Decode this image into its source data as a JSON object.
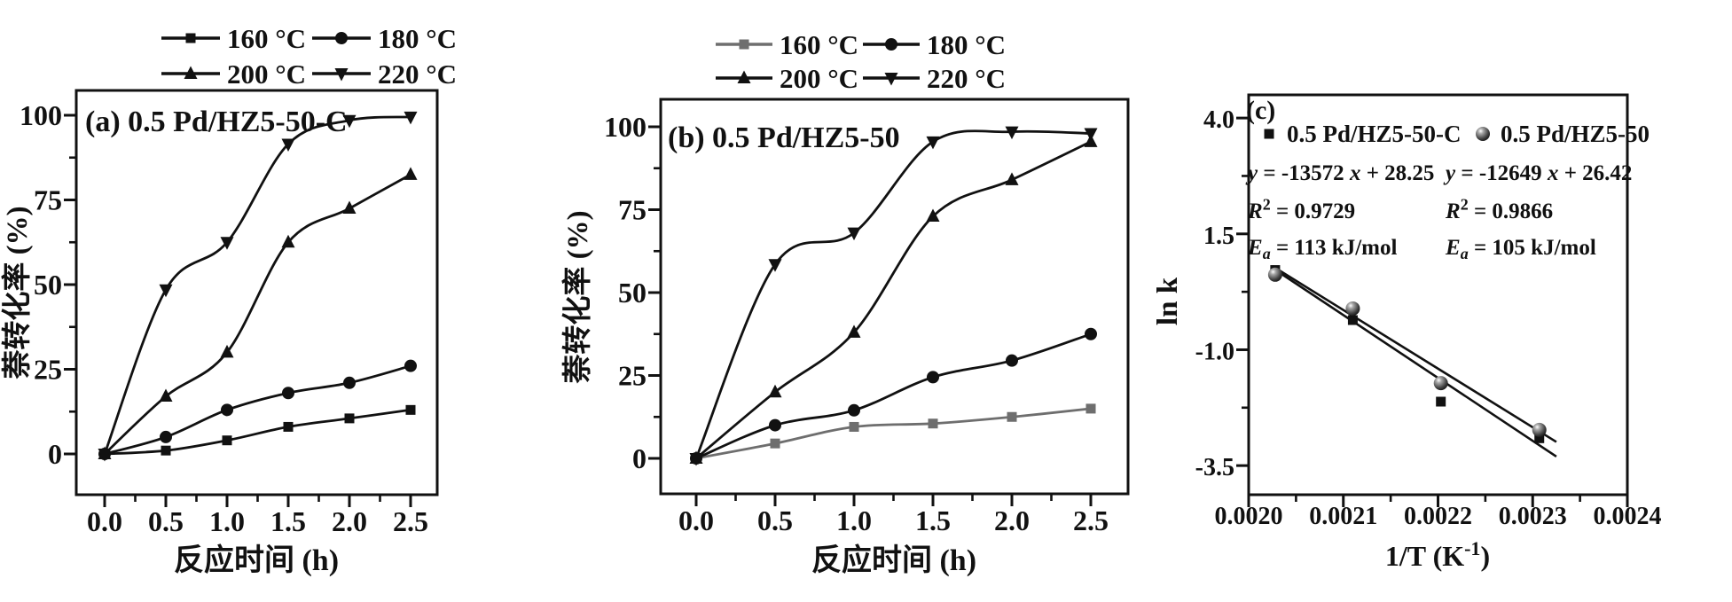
{
  "figure": {
    "background": "#ffffff",
    "ink": "#111111",
    "gray": "#6e6e6e"
  },
  "chart_data": [
    {
      "id": "a",
      "type": "line",
      "title": "(a) 0.5 Pd/HZ5-50-C",
      "xlabel": "反应时间 (h)",
      "ylabel": "萘转化率 (%)",
      "x": [
        0.0,
        0.5,
        1.0,
        1.5,
        2.0,
        2.5
      ],
      "xticks": {
        "values": [
          0.0,
          0.5,
          1.0,
          1.5,
          2.0,
          2.5
        ],
        "labels": [
          "0.0",
          "0.5",
          "1.0",
          "1.5",
          "2.0",
          "2.5"
        ]
      },
      "yticks": {
        "values": [
          0,
          25,
          50,
          75,
          100
        ],
        "labels": [
          "0",
          "25",
          "50",
          "75",
          "100"
        ]
      },
      "xlim": [
        -0.23,
        2.72
      ],
      "ylim": [
        -12,
        107
      ],
      "grid": false,
      "legend_position": "above",
      "legend_rows": [
        [
          "160 °C",
          "180 °C"
        ],
        [
          "200 °C",
          "220 °C"
        ]
      ],
      "series": [
        {
          "name": "160 °C",
          "marker": "square",
          "color": "#111111",
          "values": [
            0,
            1,
            4,
            8,
            10.5,
            13
          ]
        },
        {
          "name": "180 °C",
          "marker": "circle",
          "color": "#111111",
          "values": [
            0,
            5,
            13,
            18,
            21,
            26
          ]
        },
        {
          "name": "200 °C",
          "marker": "triangle-up",
          "color": "#111111",
          "values": [
            0,
            17,
            30,
            62.5,
            72.5,
            82.5
          ]
        },
        {
          "name": "220 °C",
          "marker": "triangle-down",
          "color": "#111111",
          "values": [
            0,
            48.5,
            62.5,
            91.5,
            98.5,
            99.5
          ]
        }
      ]
    },
    {
      "id": "b",
      "type": "line",
      "title": "(b) 0.5 Pd/HZ5-50",
      "xlabel": "反应时间 (h)",
      "ylabel": "萘转化率 (%)",
      "x": [
        0.0,
        0.5,
        1.0,
        1.5,
        2.0,
        2.5
      ],
      "xticks": {
        "values": [
          0.0,
          0.5,
          1.0,
          1.5,
          2.0,
          2.5
        ],
        "labels": [
          "0.0",
          "0.5",
          "1.0",
          "1.5",
          "2.0",
          "2.5"
        ]
      },
      "yticks": {
        "values": [
          0,
          25,
          50,
          75,
          100
        ],
        "labels": [
          "0",
          "25",
          "50",
          "75",
          "100"
        ]
      },
      "xlim": [
        -0.22,
        2.74
      ],
      "ylim": [
        -10.7,
        108.3
      ],
      "grid": false,
      "legend_position": "above",
      "legend_rows": [
        [
          "160 °C",
          "180 °C"
        ],
        [
          "200 °C",
          "220 °C"
        ]
      ],
      "series": [
        {
          "name": "160 °C",
          "marker": "square",
          "color": "#6e6e6e",
          "values": [
            0,
            4.5,
            9.5,
            10.5,
            12.5,
            15
          ]
        },
        {
          "name": "180 °C",
          "marker": "circle",
          "color": "#111111",
          "values": [
            0,
            10,
            14.5,
            24.5,
            29.5,
            37.5
          ]
        },
        {
          "name": "200 °C",
          "marker": "triangle-up",
          "color": "#111111",
          "values": [
            0,
            20,
            38,
            73,
            84,
            95.5
          ]
        },
        {
          "name": "220 °C",
          "marker": "triangle-down",
          "color": "#111111",
          "values": [
            0,
            58.5,
            68,
            95.5,
            98.5,
            98
          ]
        }
      ]
    },
    {
      "id": "c",
      "type": "scatter",
      "title": "(c)",
      "xlabel_segments": [
        {
          "t": "1/T (K"
        },
        {
          "t": "-1",
          "sup": 1
        },
        {
          "t": ")"
        }
      ],
      "ylabel": "ln k",
      "xticks": {
        "values": [
          0.002,
          0.0021,
          0.0022,
          0.0023,
          0.0024
        ],
        "labels": [
          "0.0020",
          "0.0021",
          "0.0022",
          "0.0023",
          "0.0024"
        ]
      },
      "yticks": {
        "values": [
          4.0,
          1.5,
          -1.0,
          -3.5
        ],
        "labels": [
          "4.0",
          "1.5",
          "-1.0",
          "-3.5"
        ]
      },
      "xlim": [
        0.002,
        0.0024
      ],
      "ylim": [
        -4.13,
        4.5
      ],
      "grid": false,
      "legend_position": "inside-top",
      "series": [
        {
          "name": "0.5 Pd/HZ5-50-C",
          "marker": "square",
          "color": "#111111",
          "points": [
            [
              0.002028,
              0.72
            ],
            [
              0.00211,
              -0.36
            ],
            [
              0.002203,
              -2.12
            ],
            [
              0.002307,
              -2.91
            ]
          ],
          "fit": {
            "slope": -13572,
            "intercept": 28.25,
            "x_start": 0.002025,
            "x_end": 0.002325
          },
          "equation_segments": [
            {
              "t": "y",
              "i": 1
            },
            {
              "t": " = -13572 "
            },
            {
              "t": "x",
              "i": 1
            },
            {
              "t": " + 28.25"
            }
          ],
          "r2_segments": [
            {
              "t": "R",
              "i": 1
            },
            {
              "t": "2",
              "sup": 1
            },
            {
              "t": " = 0.9729"
            }
          ],
          "ea_segments": [
            {
              "t": "E",
              "i": 1
            },
            {
              "t": "a",
              "i": 1,
              "sub": 1
            },
            {
              "t": " = 113 kJ/mol"
            }
          ]
        },
        {
          "name": "0.5 Pd/HZ5-50",
          "marker": "sphere",
          "color": "#111111",
          "points": [
            [
              0.002028,
              0.62
            ],
            [
              0.00211,
              -0.11
            ],
            [
              0.002203,
              -1.72
            ],
            [
              0.002307,
              -2.73
            ]
          ],
          "fit": {
            "slope": -12649,
            "intercept": 26.42,
            "x_start": 0.002025,
            "x_end": 0.002325
          },
          "equation_segments": [
            {
              "t": "y",
              "i": 1
            },
            {
              "t": " = -12649 "
            },
            {
              "t": "x",
              "i": 1
            },
            {
              "t": " + 26.42"
            }
          ],
          "r2_segments": [
            {
              "t": "R",
              "i": 1
            },
            {
              "t": "2",
              "sup": 1
            },
            {
              "t": " = 0.9866"
            }
          ],
          "ea_segments": [
            {
              "t": "E",
              "i": 1
            },
            {
              "t": "a",
              "i": 1,
              "sub": 1
            },
            {
              "t": " = 105 kJ/mol"
            }
          ]
        }
      ]
    }
  ]
}
